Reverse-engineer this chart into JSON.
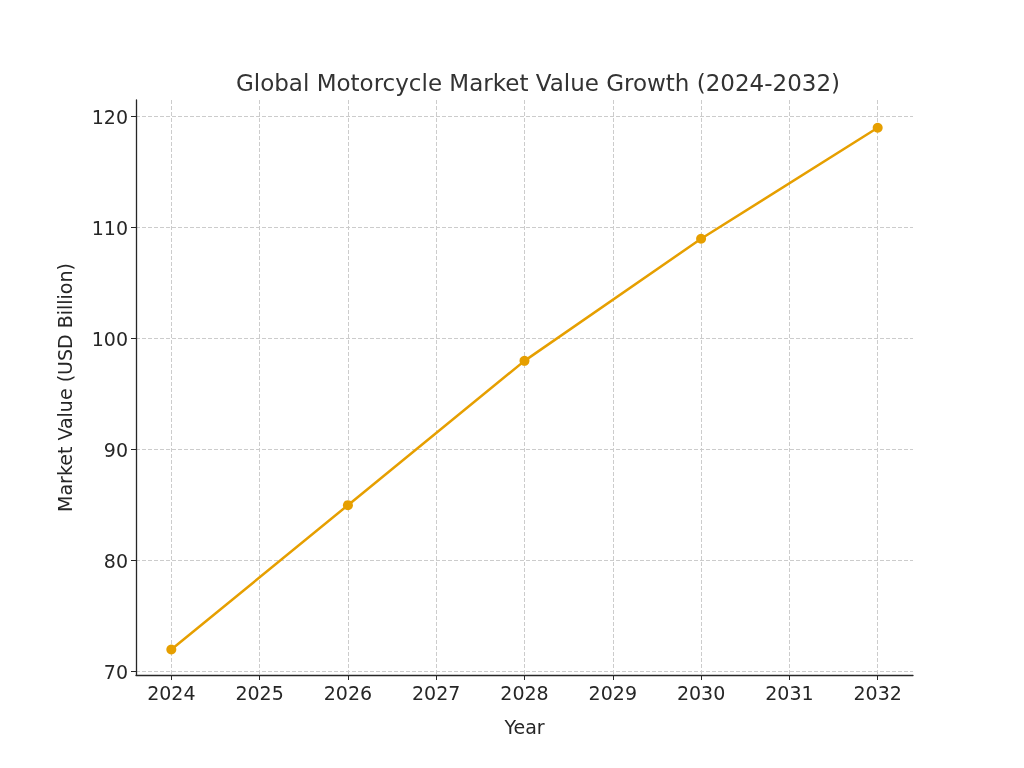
{
  "chart_data": {
    "type": "line",
    "title": "Global Motorcycle Market Value Growth (2024-2032)",
    "xlabel": "Year",
    "ylabel": "Market Value (USD Billion)",
    "x": [
      2024,
      2026,
      2028,
      2030,
      2032
    ],
    "series": [
      {
        "color": "#e69f00",
        "values": [
          72,
          85,
          98,
          109,
          119
        ]
      }
    ],
    "xlim": [
      2023.6,
      2032.4
    ],
    "xticks": [
      2024,
      2025,
      2026,
      2027,
      2028,
      2029,
      2030,
      2031,
      2032
    ],
    "ylim": [
      69.7,
      121.5
    ],
    "yticks": [
      70,
      80,
      90,
      100,
      110,
      120
    ],
    "grid": true,
    "marker": "circle",
    "line_style": "solid"
  }
}
